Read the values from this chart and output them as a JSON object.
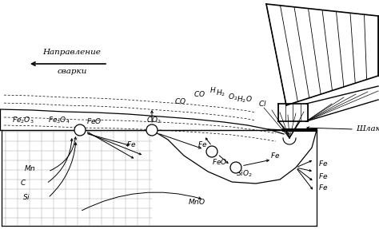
{
  "bg_color": "#ffffff",
  "fig_width": 4.74,
  "fig_height": 2.87,
  "dpi": 100,
  "direction_text_line1": "Направление",
  "direction_text_line2": "сварки",
  "slag_label": "Шлак"
}
